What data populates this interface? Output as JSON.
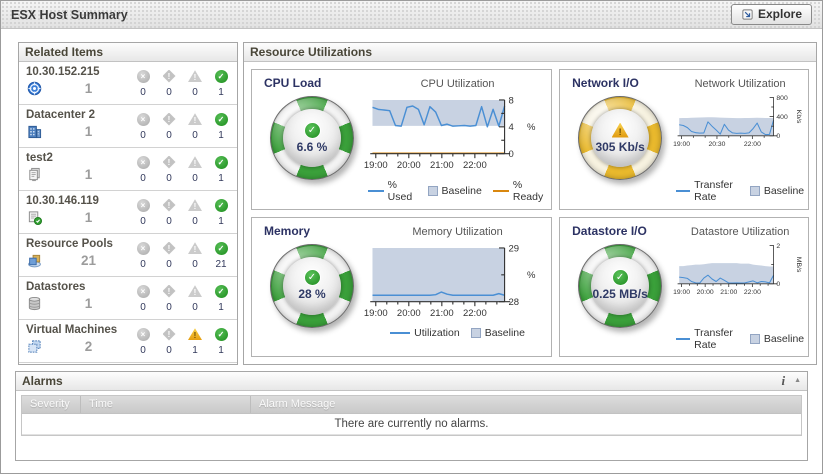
{
  "window": {
    "title": "ESX Host Summary",
    "explore_label": "Explore"
  },
  "related": {
    "header": "Related Items",
    "status_icons": [
      "fatal-icon",
      "critical-icon",
      "warning-icon",
      "normal-icon"
    ],
    "items": [
      {
        "label": "10.30.152.215",
        "icon": "host-icon",
        "count": "1",
        "counts": [
          "0",
          "0",
          "0",
          "1"
        ]
      },
      {
        "label": "Datacenter 2",
        "icon": "datacenter-icon",
        "count": "1",
        "counts": [
          "0",
          "0",
          "0",
          "1"
        ]
      },
      {
        "label": "test2",
        "icon": "cluster-icon",
        "count": "1",
        "counts": [
          "0",
          "0",
          "0",
          "1"
        ]
      },
      {
        "label": "10.30.146.119",
        "icon": "esx-host-icon",
        "count": "1",
        "counts": [
          "0",
          "0",
          "0",
          "1"
        ]
      },
      {
        "label": "Resource Pools",
        "icon": "resource-pool-icon",
        "count": "21",
        "counts": [
          "0",
          "0",
          "0",
          "21"
        ]
      },
      {
        "label": "Datastores",
        "icon": "datastore-icon",
        "count": "1",
        "counts": [
          "0",
          "0",
          "0",
          "1"
        ]
      },
      {
        "label": "Virtual Machines",
        "icon": "vm-icon",
        "count": "2",
        "counts": [
          "0",
          "0",
          "1",
          "1"
        ]
      }
    ]
  },
  "resources": {
    "header": "Resource Utilizations",
    "gauges": [
      {
        "title": "CPU Load",
        "value": "6.6 %",
        "status": "normal",
        "ring_color": "#3aa03a"
      },
      {
        "title": "Network I/O",
        "value": "305 Kb/s",
        "status": "warning",
        "ring_color": "#e9b92d"
      },
      {
        "title": "Memory",
        "value": "28 %",
        "status": "normal",
        "ring_color": "#3aa03a"
      },
      {
        "title": "Datastore I/O",
        "value": "0.25 MB/s",
        "status": "normal",
        "ring_color": "#3aa03a"
      }
    ]
  },
  "chart_data": [
    {
      "type": "line",
      "title": "CPU Utilization",
      "x_ticks": [
        "19:00",
        "20:00",
        "21:00",
        "22:00"
      ],
      "ylim": [
        0,
        8
      ],
      "y_ticks": [
        {
          "v": 0,
          "label": "0"
        },
        {
          "v": 2,
          "label": ""
        },
        {
          "v": 4,
          "label": "4"
        },
        {
          "v": 6,
          "label": ""
        },
        {
          "v": 8,
          "label": "8"
        }
      ],
      "y_unit": "%",
      "y_unit_rotated": false,
      "baseline": {
        "lower": 4.15,
        "upper": 8,
        "color": "#c8d2e2"
      },
      "series": [
        {
          "name": "% Used",
          "color": "#4a8fd4",
          "values": [
            6.9,
            6.6,
            6.5,
            6.4,
            4.2,
            4.1,
            6.9,
            7.1,
            6.6,
            4.3,
            7.0,
            6.2,
            4.2,
            4.4,
            4.1,
            4.15,
            4.2,
            4.1,
            4.2,
            7.0,
            4.0,
            6.6,
            4.1,
            7.1
          ]
        },
        {
          "name": "% Ready",
          "color": "#d9870f",
          "values": [
            0.07,
            0.07,
            0.07,
            0.07,
            0.07,
            0.07,
            0.07,
            0.07,
            0.07,
            0.07,
            0.07,
            0.07,
            0.07,
            0.07,
            0.07,
            0.07,
            0.07,
            0.07,
            0.07,
            0.07,
            0.07,
            0.07,
            0.07,
            0.07
          ]
        }
      ],
      "legend": [
        {
          "label": "% Used",
          "type": "line",
          "color": "#4a8fd4"
        },
        {
          "label": "Baseline",
          "type": "swatch",
          "color": "#c8d2e2"
        },
        {
          "label": "% Ready",
          "type": "line",
          "color": "#d9870f"
        }
      ],
      "legend_position": "bottom"
    },
    {
      "type": "line",
      "title": "Network Utilization",
      "x_ticks": [
        "19:00",
        "20:30",
        "22:00"
      ],
      "ylim": [
        0,
        800
      ],
      "y_ticks": [
        {
          "v": 0,
          "label": "0"
        },
        {
          "v": 200,
          "label": ""
        },
        {
          "v": 400,
          "label": "400"
        },
        {
          "v": 600,
          "label": ""
        },
        {
          "v": 800,
          "label": "800"
        }
      ],
      "y_unit": "Kb/s",
      "y_unit_rotated": true,
      "baseline": {
        "lower": 8,
        "upper": [
          368,
          370,
          372,
          375,
          378,
          381,
          384,
          386,
          386,
          383,
          379,
          376,
          373,
          371,
          369,
          368,
          370,
          372,
          374,
          375,
          374,
          372,
          370,
          368
        ],
        "color": "#c8d2e2"
      },
      "series": [
        {
          "name": "Transfer Rate",
          "color": "#4a8fd4",
          "values": [
            230,
            215,
            170,
            90,
            65,
            55,
            60,
            290,
            200,
            120,
            35,
            240,
            120,
            60,
            50,
            55,
            50,
            60,
            150,
            265,
            80,
            25,
            30,
            330
          ]
        }
      ],
      "legend": [
        {
          "label": "Transfer Rate",
          "type": "line",
          "color": "#4a8fd4"
        },
        {
          "label": "Baseline",
          "type": "swatch",
          "color": "#c8d2e2"
        }
      ],
      "legend_position": "bottom"
    },
    {
      "type": "line",
      "title": "Memory Utilization",
      "x_ticks": [
        "19:00",
        "20:00",
        "21:00",
        "22:00"
      ],
      "ylim": [
        28,
        29
      ],
      "y_ticks": [
        {
          "v": 28,
          "label": "28"
        },
        {
          "v": 28.5,
          "label": ""
        },
        {
          "v": 29,
          "label": "29"
        }
      ],
      "y_unit": "%",
      "y_unit_rotated": false,
      "baseline": {
        "lower": 28,
        "upper": 29,
        "color": "#c8d2e2"
      },
      "series": [
        {
          "name": "Utilization",
          "color": "#4a8fd4",
          "values": [
            28.12,
            28.12,
            28.12,
            28.12,
            28.12,
            28.12,
            28.12,
            28.12,
            28.12,
            28.12,
            28.12,
            28.13,
            28.18,
            28.14,
            28.12,
            28.12,
            28.12,
            28.12,
            28.12,
            28.12,
            28.12,
            28.12,
            28.15,
            28.12
          ]
        }
      ],
      "legend": [
        {
          "label": "Utilization",
          "type": "line",
          "color": "#4a8fd4"
        },
        {
          "label": "Baseline",
          "type": "swatch",
          "color": "#c8d2e2"
        }
      ],
      "legend_position": "bottom"
    },
    {
      "type": "line",
      "title": "Datastore Utilization",
      "x_ticks": [
        "19:00",
        "20:00",
        "21:00",
        "22:00"
      ],
      "ylim": [
        0,
        2
      ],
      "y_ticks": [
        {
          "v": 0,
          "label": "0"
        },
        {
          "v": 1,
          "label": ""
        },
        {
          "v": 2,
          "label": "2"
        }
      ],
      "y_unit": "MB/s",
      "y_unit_rotated": true,
      "baseline": {
        "lower": 0.02,
        "upper": [
          0.92,
          0.92,
          0.95,
          0.97,
          1.0,
          1.0,
          1.02,
          1.05,
          1.08,
          1.08,
          1.08,
          1.08,
          1.08,
          1.08,
          1.08,
          1.05,
          1.05,
          1.05,
          1.0,
          0.97,
          0.95,
          0.92,
          0.9,
          0.9
        ],
        "color": "#c8d2e2"
      },
      "series": [
        {
          "name": "Transfer Rate",
          "color": "#4a8fd4",
          "values": [
            0.35,
            0.32,
            0.28,
            0.12,
            0.05,
            0.04,
            0.3,
            0.45,
            0.25,
            0.12,
            0.3,
            0.18,
            0.05,
            0.04,
            0.05,
            0.04,
            0.05,
            0.1,
            0.15,
            0.05,
            0.12,
            0.1,
            0.05,
            0.45
          ]
        }
      ],
      "legend": [
        {
          "label": "Transfer Rate",
          "type": "line",
          "color": "#4a8fd4"
        },
        {
          "label": "Baseline",
          "type": "swatch",
          "color": "#c8d2e2"
        }
      ],
      "legend_position": "bottom"
    }
  ],
  "alarms": {
    "header": "Alarms",
    "columns": [
      "Severity",
      "Time",
      "Alarm Message"
    ],
    "empty_message": "There are currently no alarms."
  }
}
